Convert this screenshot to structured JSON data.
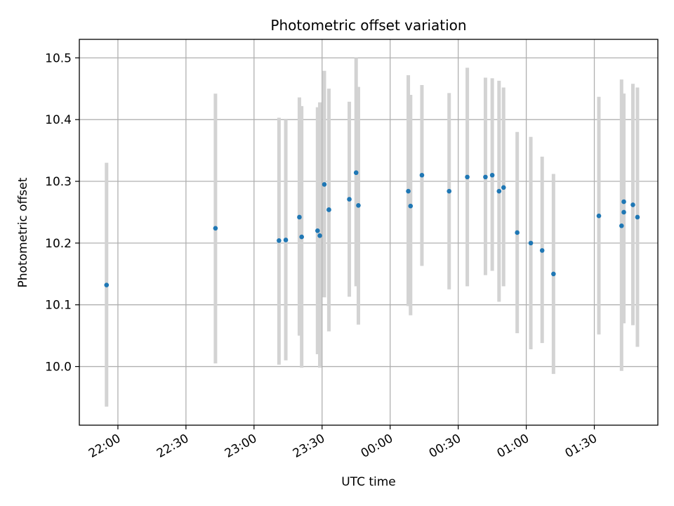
{
  "chart_data": {
    "type": "scatter",
    "title": "Photometric offset variation",
    "xlabel": "UTC time",
    "ylabel": "Photometric offset",
    "x_tick_labels": [
      "22:00",
      "22:30",
      "23:00",
      "23:30",
      "00:00",
      "00:30",
      "01:00",
      "01:30"
    ],
    "y_tick_labels": [
      "10.0",
      "10.1",
      "10.2",
      "10.3",
      "10.4",
      "10.5"
    ],
    "x_ticks": [
      "22:00",
      "22:30",
      "23:00",
      "23:30",
      "00:00",
      "00:30",
      "01:00",
      "01:30"
    ],
    "y_ticks": [
      10.0,
      10.1,
      10.2,
      10.3,
      10.4,
      10.5
    ],
    "xlim": [
      "21:43",
      "01:58"
    ],
    "ylim": [
      9.905,
      10.53
    ],
    "grid": true,
    "colors": {
      "point": "#1f77b4",
      "errorbar": "#d3d3d3",
      "grid": "#b0b0b0"
    },
    "series": [
      {
        "x": [
          "21:55",
          "22:43",
          "23:11",
          "23:14",
          "23:20",
          "23:21",
          "23:28",
          "23:29",
          "23:31",
          "23:33",
          "23:33",
          "23:42",
          "23:45",
          "23:46",
          "00:08",
          "00:09",
          "00:14",
          "00:26",
          "00:34",
          "00:42",
          "00:45",
          "00:48",
          "00:50",
          "00:56",
          "01:02",
          "01:07",
          "01:12",
          "01:32",
          "01:42",
          "01:43",
          "01:43",
          "01:47",
          "01:49"
        ],
        "y": [
          10.132,
          10.224,
          10.204,
          10.205,
          10.242,
          10.21,
          10.22,
          10.212,
          10.295,
          10.254,
          10.254,
          10.271,
          10.314,
          10.261,
          10.284,
          10.26,
          10.31,
          10.284,
          10.307,
          10.307,
          10.31,
          10.284,
          10.29,
          10.217,
          10.2,
          10.188,
          10.15,
          10.244,
          10.228,
          10.25,
          10.267,
          10.262,
          10.242
        ],
        "yerr_low": [
          9.935,
          10.005,
          10.003,
          10.01,
          10.05,
          9.998,
          10.02,
          9.998,
          10.112,
          10.057,
          10.057,
          10.113,
          10.13,
          10.068,
          10.098,
          10.083,
          10.163,
          10.125,
          10.13,
          10.148,
          10.155,
          10.105,
          10.13,
          10.054,
          10.028,
          10.038,
          9.988,
          10.052,
          9.993,
          10.07,
          10.085,
          10.067,
          10.032
        ],
        "yerr_high": [
          10.33,
          10.442,
          10.403,
          10.4,
          10.436,
          10.422,
          10.42,
          10.428,
          10.479,
          10.45,
          10.45,
          10.429,
          10.5,
          10.453,
          10.472,
          10.44,
          10.456,
          10.443,
          10.484,
          10.468,
          10.467,
          10.463,
          10.452,
          10.38,
          10.372,
          10.34,
          10.312,
          10.437,
          10.465,
          10.442,
          10.442,
          10.458,
          10.452
        ]
      }
    ]
  }
}
